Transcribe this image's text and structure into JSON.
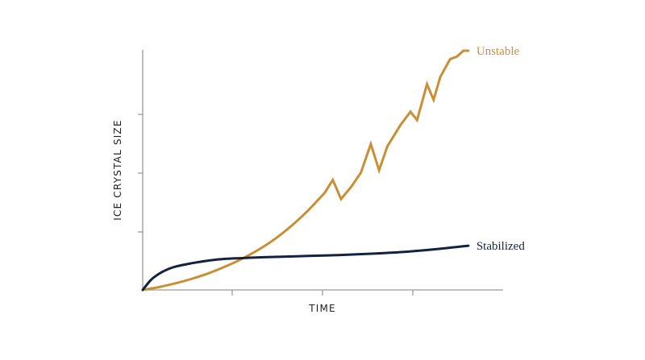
{
  "chart_data": {
    "type": "line",
    "title": "",
    "xlabel": "TIME",
    "ylabel": "ICE CRYSTAL SIZE",
    "xlim": [
      0,
      10
    ],
    "ylim": [
      0,
      10
    ],
    "x_ticks": [
      2.5,
      5,
      7.5
    ],
    "y_ticks": [
      2.5,
      5,
      7.5
    ],
    "tick_labels_shown": false,
    "grid": false,
    "legend": "none (series labeled at line ends, right)",
    "series": [
      {
        "name": "Unstable",
        "color": "#C98F34",
        "x": [
          0,
          0.5,
          1,
          1.5,
          2,
          2.5,
          3,
          3.5,
          4,
          4.5,
          5,
          5.5,
          5.75,
          6.0,
          6.3,
          6.6,
          6.9,
          7.15,
          7.4,
          7.8,
          8.1,
          8.3,
          8.6,
          8.8,
          9.0,
          9.3,
          9.5,
          9.7,
          9.85
        ],
        "values": [
          0,
          0.12,
          0.28,
          0.47,
          0.7,
          0.98,
          1.3,
          1.68,
          2.13,
          2.68,
          3.32,
          4.05,
          4.6,
          3.8,
          4.3,
          4.9,
          6.1,
          5.0,
          6.0,
          6.9,
          7.45,
          7.1,
          8.6,
          7.95,
          8.9,
          9.65,
          9.75,
          10.0,
          10.0
        ],
        "end_label": "Unstable"
      },
      {
        "name": "Stabilized",
        "color": "#13223F",
        "x": [
          0,
          0.25,
          0.5,
          0.75,
          1,
          1.5,
          2,
          2.5,
          3,
          3.5,
          4,
          5,
          6,
          7,
          8,
          9,
          9.85
        ],
        "values": [
          0,
          0.42,
          0.68,
          0.86,
          0.98,
          1.12,
          1.23,
          1.3,
          1.33,
          1.36,
          1.38,
          1.42,
          1.46,
          1.52,
          1.6,
          1.72,
          1.85
        ],
        "end_label": "Stabilized"
      }
    ]
  }
}
